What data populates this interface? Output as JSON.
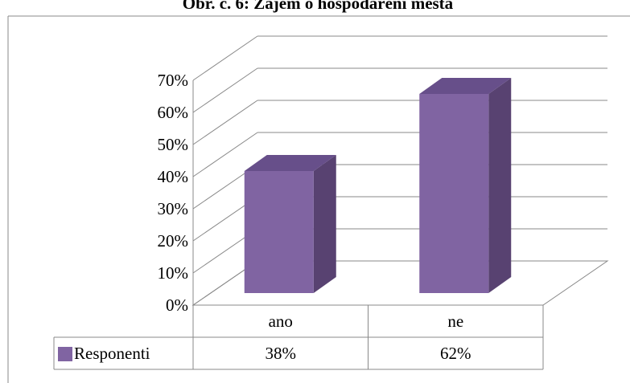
{
  "chart_data": {
    "type": "bar3d",
    "title": "Obr. č. 6: Zájem o hospodaření města",
    "categories": [
      "ano",
      "ne"
    ],
    "series": [
      {
        "name": "Responenti",
        "color": "#8064a2",
        "values": [
          38,
          62
        ],
        "value_labels": [
          "38%",
          "62%"
        ]
      }
    ],
    "ylim": [
      0,
      70
    ],
    "yticks": [
      {
        "value": 0,
        "label": "0%"
      },
      {
        "value": 10,
        "label": "10%"
      },
      {
        "value": 20,
        "label": "20%"
      },
      {
        "value": 30,
        "label": "30%"
      },
      {
        "value": 40,
        "label": "40%"
      },
      {
        "value": 50,
        "label": "50%"
      },
      {
        "value": 60,
        "label": "60%"
      },
      {
        "value": 70,
        "label": "70%"
      }
    ],
    "grid": true,
    "data_table": true
  }
}
